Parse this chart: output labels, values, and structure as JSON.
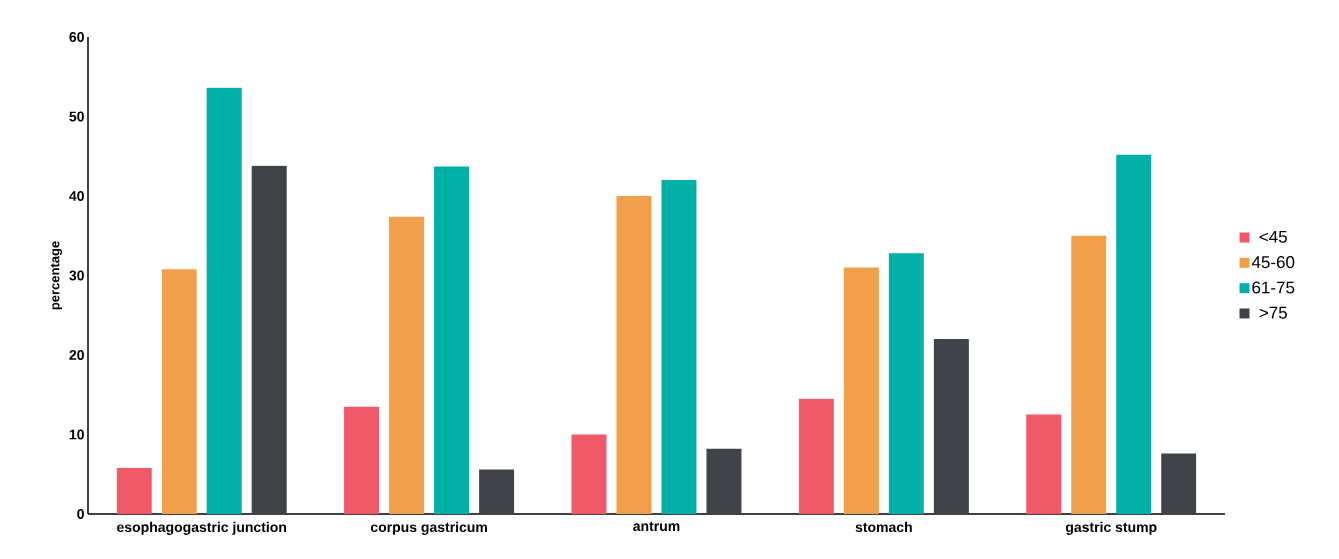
{
  "chart_data": {
    "type": "bar",
    "ylabel": "percentage",
    "categories": [
      "esophagogastric junction",
      "corpus gastricum",
      "antrum",
      "stomach",
      "gastric stump"
    ],
    "series": [
      {
        "name": "<45",
        "color": "#f05a68",
        "values": [
          5.8,
          13.5,
          10,
          14.5,
          12.5
        ]
      },
      {
        "name": "45-60",
        "color": "#f0a04b",
        "values": [
          30.8,
          37.4,
          40,
          31,
          35
        ]
      },
      {
        "name": "61-75",
        "color": "#00b0a8",
        "values": [
          53.6,
          43.7,
          42,
          32.8,
          45.2
        ]
      },
      {
        "name": ">75",
        "color": "#404448",
        "values": [
          43.8,
          5.6,
          8.2,
          22,
          7.6
        ]
      }
    ],
    "ylim": [
      0,
      60
    ],
    "yticks": [
      0,
      10,
      20,
      30,
      40,
      50,
      60
    ],
    "grid": false,
    "legend": "right"
  }
}
